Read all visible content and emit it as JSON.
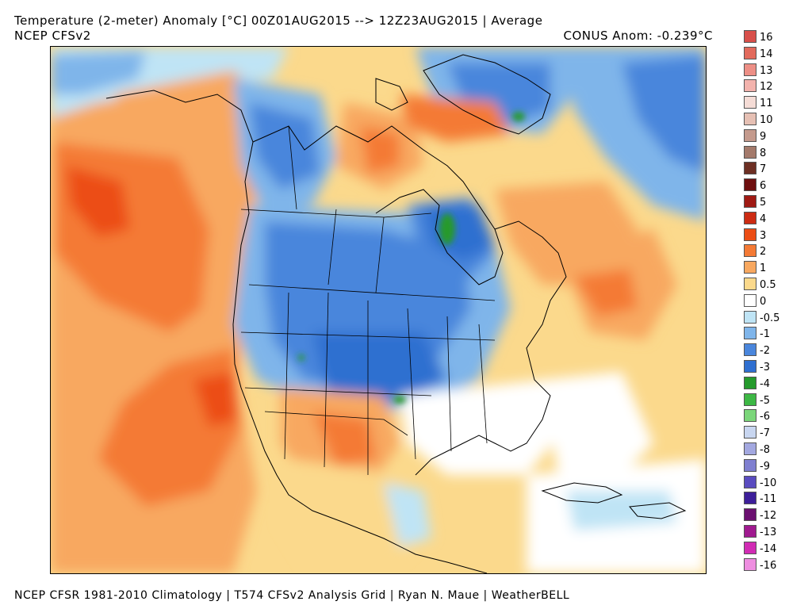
{
  "header": {
    "title": "Temperature (2-meter) Anomaly  [°C] 00Z01AUG2015 --> 12Z23AUG2015 | Average",
    "model": "NCEP CFSv2",
    "conus_anomaly": "CONUS Anom: -0.239°C"
  },
  "footer": {
    "credits": "NCEP CFSR 1981-2010 Climatology | T574 CFSv2 Analysis Grid | Ryan N. Maue | WeatherBELL"
  },
  "map": {
    "region": "North America",
    "variable": "2-meter temperature anomaly",
    "units": "°C"
  },
  "legend": {
    "units": "°C",
    "levels": [
      {
        "label": "16",
        "color": "#d8504b"
      },
      {
        "label": "14",
        "color": "#e26a5c"
      },
      {
        "label": "13",
        "color": "#ed8f86"
      },
      {
        "label": "12",
        "color": "#f3b3ad"
      },
      {
        "label": "11",
        "color": "#f5dcd6"
      },
      {
        "label": "10",
        "color": "#e6c0b4"
      },
      {
        "label": "9",
        "color": "#c49a8d"
      },
      {
        "label": "8",
        "color": "#a47a6b"
      },
      {
        "label": "7",
        "color": "#6d2f23"
      },
      {
        "label": "6",
        "color": "#6e0f0f"
      },
      {
        "label": "5",
        "color": "#a01a14"
      },
      {
        "label": "4",
        "color": "#cc2b13"
      },
      {
        "label": "3",
        "color": "#ec4d15"
      },
      {
        "label": "2",
        "color": "#f47a35"
      },
      {
        "label": "1",
        "color": "#f8a860"
      },
      {
        "label": "0.5",
        "color": "#fbd98c"
      },
      {
        "label": "0",
        "color": "#ffffff"
      },
      {
        "label": "-0.5",
        "color": "#bfe4f5"
      },
      {
        "label": "-1",
        "color": "#7fb5ea"
      },
      {
        "label": "-2",
        "color": "#4a86dc"
      },
      {
        "label": "-3",
        "color": "#2f6fd0"
      },
      {
        "label": "-4",
        "color": "#259a2c"
      },
      {
        "label": "-5",
        "color": "#3db845"
      },
      {
        "label": "-6",
        "color": "#7bd67a"
      },
      {
        "label": "-7",
        "color": "#c8d6f0"
      },
      {
        "label": "-8",
        "color": "#a3a8e0"
      },
      {
        "label": "-9",
        "color": "#7f7fd0"
      },
      {
        "label": "-10",
        "color": "#5a4cc0"
      },
      {
        "label": "-11",
        "color": "#3d1f9a"
      },
      {
        "label": "-12",
        "color": "#6b1070"
      },
      {
        "label": "-13",
        "color": "#a01a90"
      },
      {
        "label": "-14",
        "color": "#d12cb4"
      },
      {
        "label": "-16",
        "color": "#ee8ee0"
      }
    ]
  }
}
